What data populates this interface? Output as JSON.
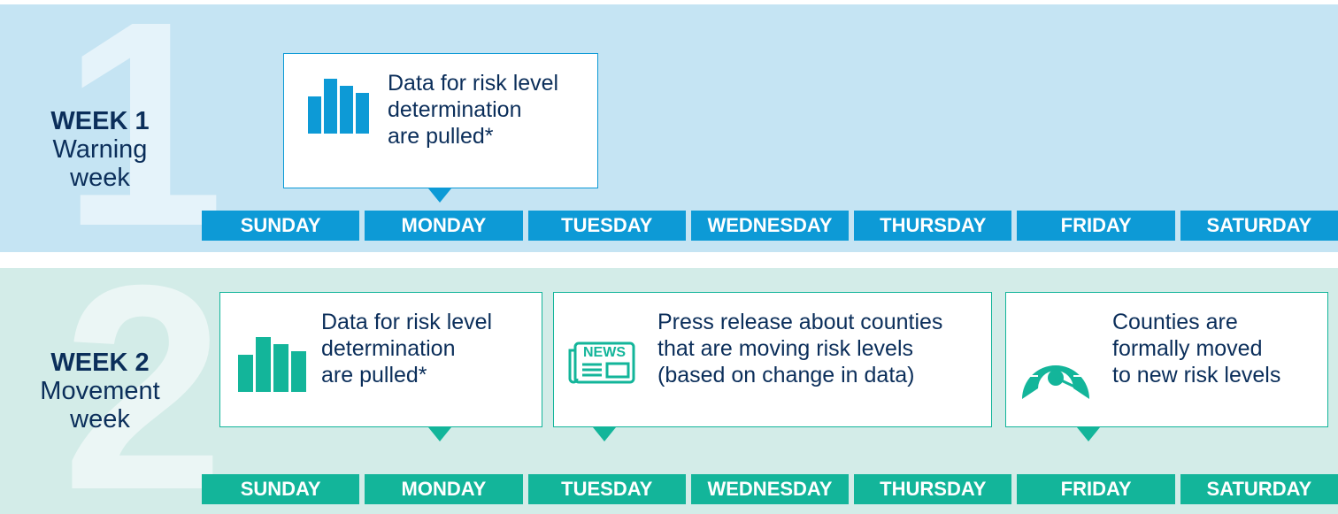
{
  "weeks": [
    {
      "numeral": "1",
      "title": "WEEK 1",
      "subtitle": [
        "Warning",
        "week"
      ],
      "events": [
        {
          "lines": [
            "Data for risk level",
            "determination",
            "are pulled*"
          ]
        }
      ],
      "days": [
        "SUNDAY",
        "MONDAY",
        "TUESDAY",
        "WEDNESDAY",
        "THURSDAY",
        "FRIDAY",
        "SATURDAY"
      ]
    },
    {
      "numeral": "2",
      "title": "WEEK 2",
      "subtitle": [
        "Movement",
        "week"
      ],
      "events": [
        {
          "lines": [
            "Data for risk level",
            "determination",
            "are pulled*"
          ]
        },
        {
          "icon_text": "NEWS",
          "lines": [
            "Press release about counties",
            "that are moving risk levels",
            "(based on change in data)"
          ]
        },
        {
          "lines": [
            "Counties are",
            "formally moved",
            "to new risk levels"
          ]
        }
      ],
      "days": [
        "SUNDAY",
        "MONDAY",
        "TUESDAY",
        "WEDNESDAY",
        "THURSDAY",
        "FRIDAY",
        "SATURDAY"
      ]
    }
  ]
}
